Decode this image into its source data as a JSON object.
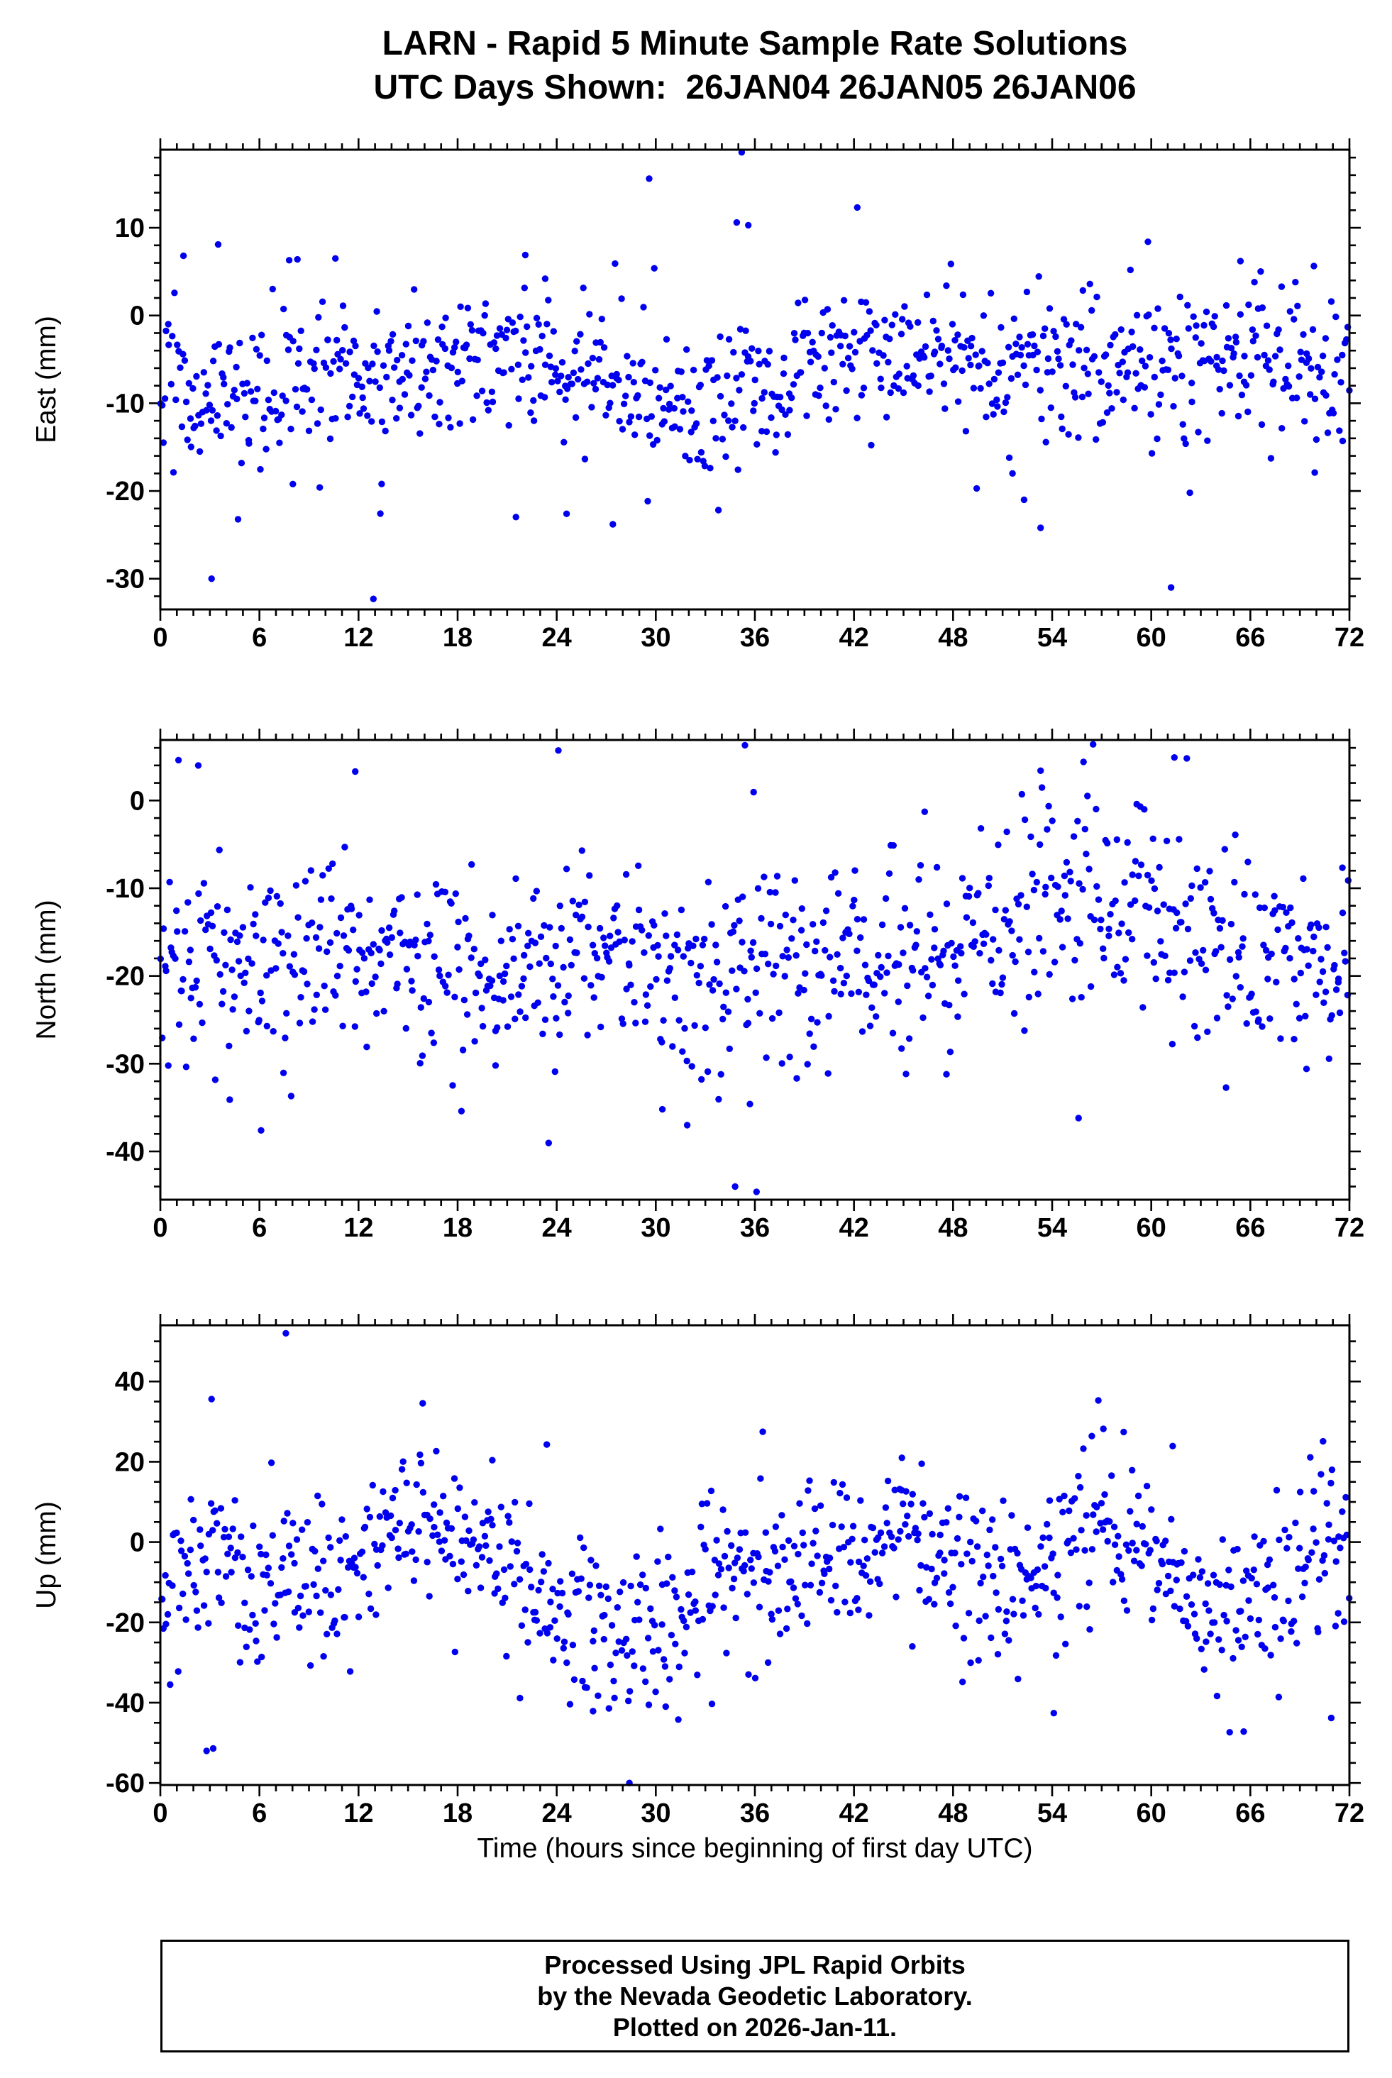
{
  "title": {
    "line1": "LARN - Rapid 5 Minute Sample Rate Solutions",
    "line2": "UTC Days Shown:  26JAN04 26JAN05 26JAN06"
  },
  "footer": {
    "line1": "Processed Using JPL Rapid Orbits",
    "line2": "by the Nevada Geodetic Laboratory.",
    "line3": "Plotted on 2026-Jan-11."
  },
  "xaxis": {
    "label": "Time (hours since beginning of first day UTC)",
    "min": 0,
    "max": 72,
    "major": 6,
    "minor": 1,
    "ticks": [
      0,
      6,
      12,
      18,
      24,
      30,
      36,
      42,
      48,
      54,
      60,
      66,
      72
    ],
    "tick_labels": [
      "0",
      "6",
      "12",
      "18",
      "24",
      "30",
      "36",
      "42",
      "48",
      "54",
      "60",
      "66",
      "72"
    ]
  },
  "marker": {
    "color": "#0000ee",
    "radius": 4.7
  },
  "chart_data": [
    {
      "type": "scatter",
      "name": "east",
      "ylabel": "East (mm)",
      "grid": false,
      "legend": "none",
      "xlim": [
        0,
        72
      ],
      "ylim": [
        -33.5,
        18.9
      ],
      "yticks": [
        10,
        0,
        -10,
        -20,
        -30
      ],
      "ytick_labels": [
        "10",
        "0",
        "-10",
        "-20",
        "-30"
      ],
      "y_major": 10,
      "y_minor": 2,
      "points_spec": {
        "n": 860,
        "seed": 101,
        "base": -6.8,
        "sd": 4.3,
        "wave": {
          "amp": 1.3,
          "period": 24,
          "phase": 14
        },
        "bumps": [
          {
            "c": 33,
            "w": 2.5,
            "a": -3.2
          },
          {
            "c": 58,
            "w": 5.0,
            "a": 2.2
          },
          {
            "c": 2,
            "w": 1.5,
            "a": -2.0
          },
          {
            "c": 45,
            "w": 8.0,
            "a": 1.0
          }
        ],
        "outlier_prob": 0.02,
        "outlier_scale": 1.9
      },
      "extra_points": [
        [
          3.1,
          -30.0
        ],
        [
          12.9,
          -32.3
        ],
        [
          61.2,
          -31.0
        ],
        [
          29.6,
          15.6
        ],
        [
          35.2,
          18.6
        ],
        [
          34.9,
          10.6
        ],
        [
          35.6,
          10.3
        ],
        [
          27.4,
          -23.8
        ],
        [
          53.3,
          -24.2
        ],
        [
          24.6,
          -22.6
        ],
        [
          1.4,
          6.8
        ],
        [
          3.5,
          8.1
        ],
        [
          7.8,
          6.3
        ],
        [
          8.3,
          6.4
        ],
        [
          59.8,
          8.4
        ],
        [
          65.4,
          6.2
        ],
        [
          10.6,
          6.5
        ],
        [
          51.6,
          -18.0
        ],
        [
          52.3,
          -21.0
        ],
        [
          13.4,
          -19.2
        ],
        [
          69.9,
          -17.9
        ],
        [
          22.1,
          6.9
        ],
        [
          23.3,
          4.2
        ]
      ]
    },
    {
      "type": "scatter",
      "name": "north",
      "ylabel": "North (mm)",
      "grid": false,
      "legend": "none",
      "xlim": [
        0,
        72
      ],
      "ylim": [
        -45.5,
        6.9
      ],
      "yticks": [
        0,
        -10,
        -20,
        -30,
        -40
      ],
      "ytick_labels": [
        "0",
        "-10",
        "-20",
        "-30",
        "-40"
      ],
      "y_major": 10,
      "y_minor": 2,
      "points_spec": {
        "n": 860,
        "seed": 202,
        "base": -17.0,
        "sd": 5.6,
        "wave": {
          "amp": 2.0,
          "period": 24,
          "phase": 2
        },
        "bumps": [
          {
            "c": 33,
            "w": 2.8,
            "a": -6.0
          },
          {
            "c": 5.5,
            "w": 2.5,
            "a": -4.0
          },
          {
            "c": 58.5,
            "w": 5.0,
            "a": 3.0
          },
          {
            "c": 47,
            "w": 6.0,
            "a": 2.0
          }
        ],
        "outlier_prob": 0.02,
        "outlier_scale": 1.9
      },
      "extra_points": [
        [
          24.1,
          5.7
        ],
        [
          35.4,
          6.3
        ],
        [
          1.1,
          4.6
        ],
        [
          2.3,
          4.0
        ],
        [
          61.4,
          4.9
        ],
        [
          55.9,
          4.4
        ],
        [
          53.3,
          3.4
        ],
        [
          11.8,
          3.3
        ],
        [
          34.8,
          -44.0
        ],
        [
          36.1,
          -44.6
        ],
        [
          30.4,
          -35.2
        ],
        [
          31.9,
          -37.0
        ],
        [
          35.7,
          -34.6
        ],
        [
          6.1,
          -37.6
        ],
        [
          4.2,
          -34.1
        ],
        [
          47.6,
          -31.2
        ],
        [
          69.4,
          -30.6
        ],
        [
          55.6,
          -36.2
        ],
        [
          23.9,
          -30.9
        ],
        [
          20.3,
          -30.2
        ]
      ]
    },
    {
      "type": "scatter",
      "name": "up",
      "ylabel": "Up (mm)",
      "grid": false,
      "legend": "none",
      "xlim": [
        0,
        72
      ],
      "ylim": [
        -60.5,
        54
      ],
      "yticks": [
        40,
        20,
        0,
        -20,
        -40,
        -60
      ],
      "ytick_labels": [
        "40",
        "20",
        "0",
        "-20",
        "-40",
        "-60"
      ],
      "y_major": 20,
      "y_minor": 5,
      "points_spec": {
        "n": 860,
        "seed": 303,
        "base": -8.0,
        "sd": 10.5,
        "wave": {
          "amp": 5.0,
          "period": 24,
          "phase": 10
        },
        "bumps": [
          {
            "c": 28,
            "w": 3.5,
            "a": -13.0
          },
          {
            "c": 45.8,
            "w": 2.2,
            "a": 11.0
          },
          {
            "c": 57,
            "w": 2.5,
            "a": 12.0
          },
          {
            "c": 64.5,
            "w": 3.0,
            "a": -11.0
          },
          {
            "c": 3,
            "w": 1.2,
            "a": 8.0
          },
          {
            "c": 16.5,
            "w": 1.6,
            "a": 7.0
          },
          {
            "c": 70.5,
            "w": 1.5,
            "a": 8.0
          }
        ],
        "outlier_prob": 0.02,
        "outlier_scale": 1.9
      },
      "extra_points": [
        [
          7.6,
          52.0
        ],
        [
          3.1,
          35.6
        ],
        [
          57.1,
          28.2
        ],
        [
          56.4,
          26.4
        ],
        [
          61.3,
          23.9
        ],
        [
          23.4,
          24.3
        ],
        [
          70.4,
          25.1
        ],
        [
          20.1,
          20.4
        ],
        [
          28.4,
          -60.0
        ],
        [
          2.8,
          -52.0
        ],
        [
          3.2,
          -51.4
        ],
        [
          65.6,
          -47.2
        ],
        [
          70.9,
          -43.8
        ],
        [
          54.1,
          -42.6
        ],
        [
          26.2,
          -42.1
        ],
        [
          30.6,
          -41.0
        ],
        [
          33.4,
          -40.3
        ],
        [
          36.8,
          -30.0
        ],
        [
          44.9,
          21.0
        ],
        [
          46.1,
          19.5
        ]
      ]
    }
  ]
}
